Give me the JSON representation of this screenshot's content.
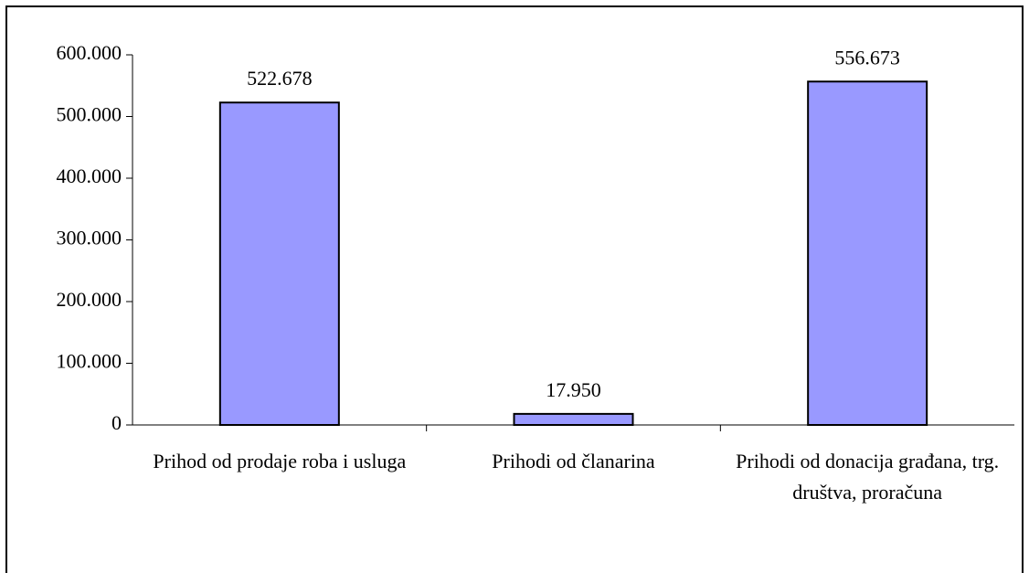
{
  "chart_data": {
    "type": "bar",
    "categories": [
      "Prihod od prodaje roba i usluga",
      "Prihodi od članarina",
      "Prihodi od donacija građana, trg. društva, proračuna"
    ],
    "values": [
      522678,
      17950,
      556673
    ],
    "value_labels": [
      "522.678",
      "17.950",
      "556.673"
    ],
    "color": "#9999ff",
    "ylim": [
      0,
      600000
    ],
    "yticks": [
      0,
      {
        "value": 100000,
        "label": "100.000"
      },
      {
        "value": 200000,
        "label": "200.000"
      },
      {
        "value": 300000,
        "label": "300.000"
      },
      {
        "value": 400000,
        "label": "400.000"
      },
      {
        "value": 500000,
        "label": "500.000"
      },
      {
        "value": 600000,
        "label": "600.000"
      }
    ],
    "grid": false
  }
}
